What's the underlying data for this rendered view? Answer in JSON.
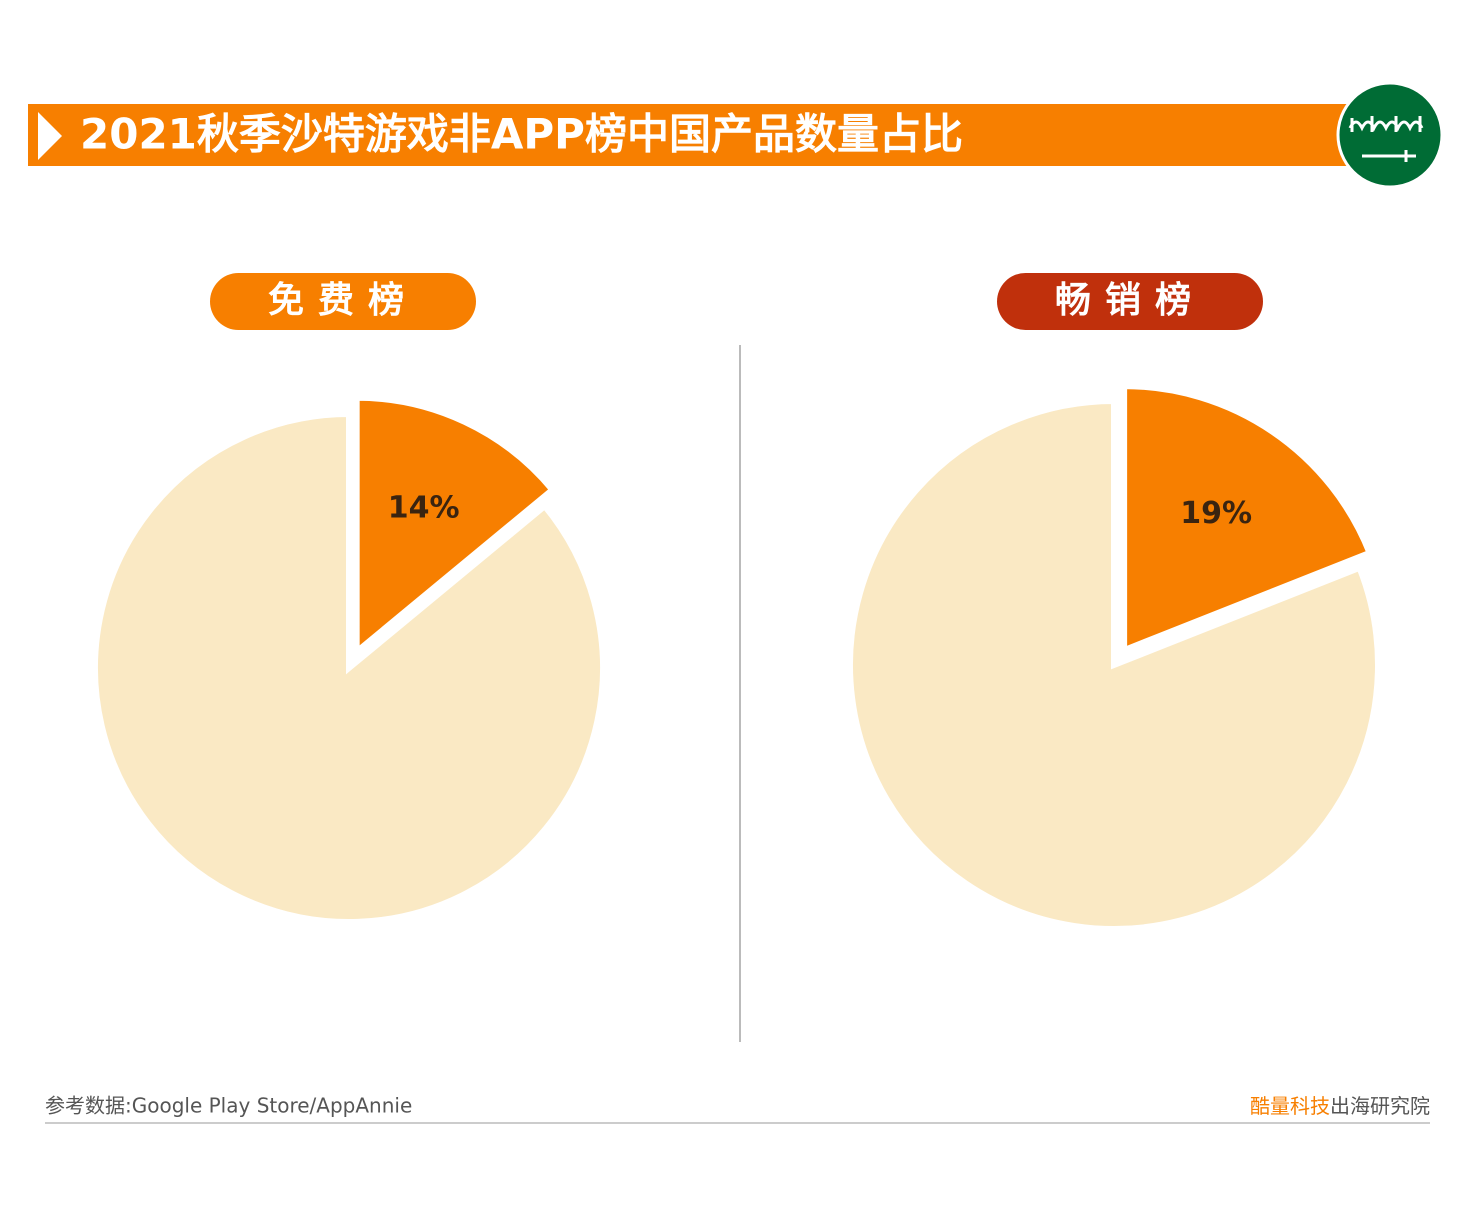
{
  "header": {
    "title": "2021秋季沙特游戏非APP榜中国产品数量占比"
  },
  "chart_data": [
    {
      "type": "pie",
      "title": "免费榜",
      "title_color": "#f77f00",
      "categories": [
        null,
        null
      ],
      "values": [
        14,
        86
      ],
      "value_labels": [
        "14%",
        null
      ],
      "colors": [
        "#f77f00",
        "#fae9c4"
      ]
    },
    {
      "type": "pie",
      "title": "畅销榜",
      "title_color": "#c0300c",
      "categories": [
        null,
        null
      ],
      "values": [
        19,
        81
      ],
      "value_labels": [
        "19%",
        null
      ],
      "colors": [
        "#f77f00",
        "#fae9c4"
      ]
    }
  ],
  "footer": {
    "source": "参考数据:Google Play Store/AppAnnie",
    "brand_highlight": "酷量科技",
    "brand_rest": "出海研究院"
  }
}
